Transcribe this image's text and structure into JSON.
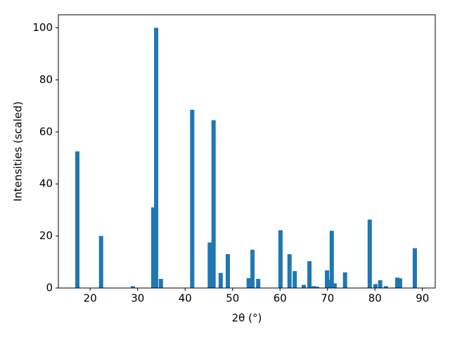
{
  "chart_data": {
    "type": "bar",
    "x_label": "2θ (°)",
    "y_label": "Intensities (scaled)",
    "color": "#1f77b4",
    "x": [
      17.3,
      22.3,
      29.0,
      33.3,
      33.9,
      34.9,
      41.5,
      45.2,
      46.0,
      47.5,
      49.0,
      53.4,
      54.2,
      55.4,
      60.1,
      62.0,
      63.1,
      65.0,
      66.2,
      67.1,
      67.8,
      69.9,
      70.5,
      70.9,
      71.5,
      73.7,
      78.9,
      80.1,
      81.1,
      82.3,
      84.7,
      85.3,
      88.4
    ],
    "values": [
      52.5,
      20,
      0.7,
      31,
      100,
      3.5,
      68.5,
      17.5,
      64.5,
      5.8,
      13,
      3.8,
      14.7,
      3.5,
      22.2,
      13,
      6.5,
      1.2,
      10.3,
      0.7,
      0.5,
      6.8,
      3.2,
      22,
      1.8,
      6,
      26.3,
      1.5,
      3,
      0.7,
      4,
      3.7,
      15.3
    ],
    "xlim": [
      13.3,
      92.7
    ],
    "ylim": [
      0,
      105
    ],
    "xticks": [
      20,
      30,
      40,
      50,
      60,
      70,
      80,
      90
    ],
    "yticks": [
      0,
      20,
      40,
      60,
      80,
      100
    ],
    "grid": false
  }
}
